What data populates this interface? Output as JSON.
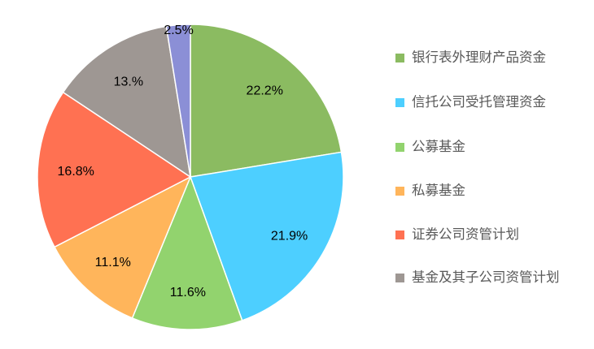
{
  "chart_data": {
    "type": "pie",
    "start": "top, clockwise",
    "slices": [
      {
        "label": "银行表外理财产品资金",
        "value": 22.2,
        "display": "22.2%",
        "color": "#8BBB61"
      },
      {
        "label": "信托公司受托管理资金",
        "value": 21.9,
        "display": "21.9%",
        "color": "#4DCFFF"
      },
      {
        "label": "公募基金",
        "value": 11.6,
        "display": "11.6%",
        "color": "#92D36E"
      },
      {
        "label": "私募基金",
        "value": 11.1,
        "display": "11.1%",
        "color": "#FFB55B"
      },
      {
        "label": "证券公司资管计划",
        "value": 16.8,
        "display": "16.8%",
        "color": "#FF7152"
      },
      {
        "label": "基金及其子公司资管计划",
        "value": 13.0,
        "display": "13.%",
        "color": "#9E9793"
      },
      {
        "label": "",
        "value": 2.5,
        "display": "2.5%",
        "color": "#8B8FD6"
      }
    ],
    "legend": {
      "placement": "right",
      "tops": [
        0,
        55,
        110,
        164,
        218,
        271
      ]
    }
  }
}
